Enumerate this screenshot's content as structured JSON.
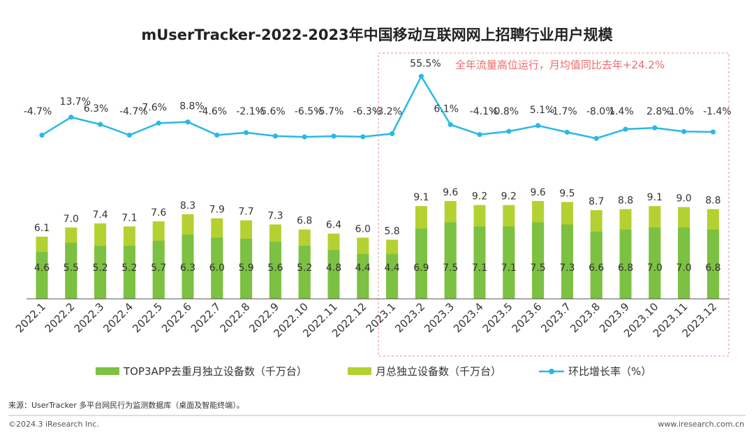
{
  "colors": {
    "dark_green": "#7cc142",
    "light_green": "#b4d132",
    "line": "#2ab8e6",
    "highlight_box": "#ee8888",
    "annotation": "#ef6b6b"
  },
  "chart_data": {
    "type": "bar",
    "title": "mUserTracker-2022-2023年中国移动互联网网上招聘行业用户规模",
    "categories": [
      "2022.1",
      "2022.2",
      "2022.3",
      "2022.4",
      "2022.5",
      "2022.6",
      "2022.7",
      "2022.8",
      "2022.9",
      "2022.10",
      "2022.11",
      "2022.12",
      "2023.1",
      "2023.2",
      "2023.3",
      "2023.4",
      "2023.5",
      "2023.6",
      "2023.7",
      "2023.8",
      "2023.9",
      "2023.10",
      "2023.11",
      "2023.12"
    ],
    "series": [
      {
        "name": "TOP3APP去重月独立设备数（千万台）",
        "type": "bar",
        "values": [
          4.6,
          5.5,
          5.2,
          5.2,
          5.7,
          6.3,
          6.0,
          5.9,
          5.6,
          5.2,
          4.8,
          4.4,
          4.4,
          6.9,
          7.5,
          7.1,
          7.1,
          7.5,
          7.3,
          6.6,
          6.8,
          7.0,
          7.0,
          6.8
        ],
        "labels": [
          "4.6",
          "5.5",
          "5.2",
          "5.2",
          "5.7",
          "6.3",
          "6.0",
          "5.9",
          "5.6",
          "5.2",
          "4.8",
          "4.4",
          "4.4",
          "6.9",
          "7.5",
          "7.1",
          "7.1",
          "7.5",
          "7.3",
          "6.6",
          "6.8",
          "7.0",
          "7.0",
          "6.8"
        ]
      },
      {
        "name": "月总独立设备数（千万台）",
        "type": "bar",
        "values": [
          6.1,
          7.0,
          7.4,
          7.1,
          7.6,
          8.3,
          7.9,
          7.7,
          7.3,
          6.8,
          6.4,
          6.0,
          5.8,
          9.1,
          9.6,
          9.2,
          9.2,
          9.6,
          9.5,
          8.7,
          8.8,
          9.1,
          9.0,
          8.8
        ],
        "labels": [
          "6.1",
          "7.0",
          "7.4",
          "7.1",
          "7.6",
          "8.3",
          "7.9",
          "7.7",
          "7.3",
          "6.8",
          "6.4",
          "6.0",
          "5.8",
          "9.1",
          "9.6",
          "9.2",
          "9.2",
          "9.6",
          "9.5",
          "8.7",
          "8.8",
          "9.1",
          "9.0",
          "8.8"
        ]
      },
      {
        "name": "环比增长率（%）",
        "type": "line",
        "values": [
          -4.7,
          13.7,
          6.3,
          -4.7,
          7.6,
          8.8,
          -4.6,
          -2.1,
          -5.6,
          -6.5,
          -5.7,
          -6.3,
          -3.2,
          55.5,
          6.1,
          -4.1,
          -0.8,
          5.1,
          -1.7,
          -8.0,
          1.4,
          2.8,
          -1.0,
          -1.4
        ],
        "labels": [
          "-4.7%",
          "13.7%",
          "6.3%",
          "-4.7%",
          "7.6%",
          "8.8%",
          "-4.6%",
          "-2.1%",
          "-5.6%",
          "-6.5%",
          "-5.7%",
          "-6.3%",
          "-3.2%",
          "55.5%",
          "6.1%",
          "-4.1%",
          "-0.8%",
          "5.1%",
          "-1.7%",
          "-8.0%",
          "1.4%",
          "2.8%",
          "-1.0%",
          "-1.4%"
        ]
      }
    ],
    "bar_ylim": [
      0,
      14
    ],
    "line_ylim": [
      -15,
      60
    ],
    "highlight": {
      "from_category": "2023.1",
      "to_category": "2023.12"
    },
    "annotation": "全年流量高位运行，月均值同比去年+24.2%",
    "legend_position": "bottom",
    "grid": false
  },
  "legend": {
    "dark_label": "TOP3APP去重月独立设备数（千万台）",
    "light_label": "月总独立设备数（千万台）",
    "line_label": "环比增长率（%）"
  },
  "footer": {
    "source": "来源：UserTracker 多平台网民行为监测数据库（桌面及智能终端）。",
    "copyright": "©2024.3 iResearch Inc.",
    "website": "www.iresearch.com.cn"
  }
}
